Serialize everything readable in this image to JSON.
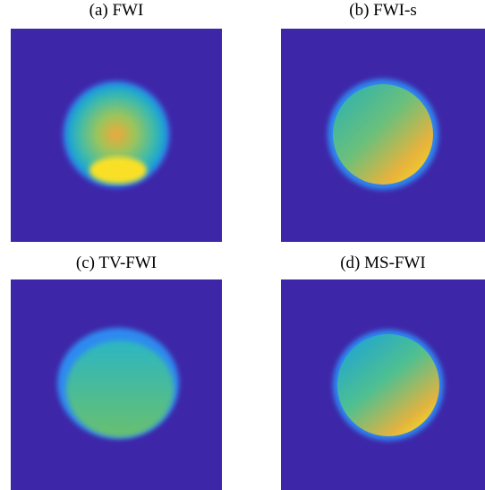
{
  "panels": [
    {
      "caption": "(a) FWI"
    },
    {
      "caption": "(b) FWI-s"
    },
    {
      "caption": "(c) TV-FWI"
    },
    {
      "caption": "(d) MS-FWI"
    }
  ]
}
